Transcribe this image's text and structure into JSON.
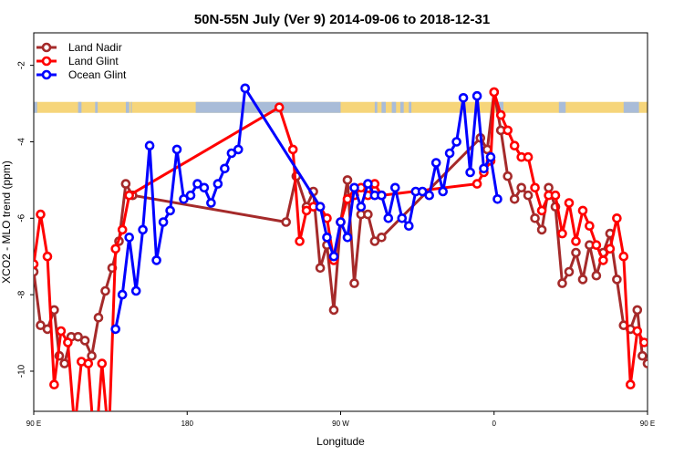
{
  "chart_data": {
    "type": "line",
    "title": "50N-55N July (Ver 9)   2014-09-06 to 2018-12-31",
    "xlabel": "Longitude",
    "ylabel": "XCO2 - MLO trend (ppm)",
    "xlim": [
      90,
      450
    ],
    "ylim": [
      -11.05,
      -1.15
    ],
    "xticks": [
      {
        "value": 90,
        "label": "90 E"
      },
      {
        "value": 180,
        "label": "180"
      },
      {
        "value": 270,
        "label": "90 W"
      },
      {
        "value": 360,
        "label": "0"
      },
      {
        "value": 450,
        "label": "90 E"
      },
      {
        "value": 540,
        "label": "180"
      }
    ],
    "yticks": [
      -2,
      -4,
      -6,
      -8,
      -10
    ],
    "legend_position": "top-left",
    "land_sea_band": {
      "y_center": -3.1,
      "land_color": "#f6d57a",
      "sea_color": "#a9bcd8"
    },
    "series": [
      {
        "name": "Land Nadir",
        "color": "#a52a2a",
        "points": [
          [
            90,
            -7.4
          ],
          [
            94,
            -8.8
          ],
          [
            98,
            -8.9
          ],
          [
            102,
            -8.4
          ],
          [
            105,
            -9.6
          ],
          [
            108,
            -9.8
          ],
          [
            112,
            -9.1
          ],
          [
            116,
            -9.1
          ],
          [
            120,
            -9.2
          ],
          [
            124,
            -9.6
          ],
          [
            128,
            -8.6
          ],
          [
            132,
            -7.9
          ],
          [
            136,
            -7.3
          ],
          [
            140,
            -6.6
          ],
          [
            144,
            -5.1
          ],
          [
            148,
            -5.4
          ],
          [
            238,
            -6.1
          ],
          [
            244,
            -4.9
          ],
          [
            250,
            -5.7
          ],
          [
            254,
            -5.3
          ],
          [
            258,
            -7.3
          ],
          [
            262,
            -6.7
          ],
          [
            266,
            -8.4
          ],
          [
            270,
            -6.1
          ],
          [
            274,
            -5.0
          ],
          [
            278,
            -7.7
          ],
          [
            282,
            -5.9
          ],
          [
            286,
            -5.9
          ],
          [
            290,
            -6.6
          ],
          [
            294,
            -6.5
          ],
          [
            352,
            -3.9
          ],
          [
            356,
            -4.2
          ],
          [
            360,
            -2.7
          ],
          [
            364,
            -3.7
          ],
          [
            368,
            -4.9
          ],
          [
            372,
            -5.5
          ],
          [
            376,
            -5.2
          ],
          [
            380,
            -5.4
          ],
          [
            384,
            -6.0
          ],
          [
            388,
            -6.3
          ],
          [
            392,
            -5.2
          ],
          [
            396,
            -5.7
          ],
          [
            400,
            -7.7
          ],
          [
            404,
            -7.4
          ],
          [
            408,
            -6.9
          ],
          [
            412,
            -7.6
          ],
          [
            416,
            -6.7
          ],
          [
            420,
            -7.5
          ],
          [
            424,
            -6.9
          ],
          [
            428,
            -6.4
          ],
          [
            432,
            -7.6
          ],
          [
            436,
            -8.8
          ],
          [
            440,
            -8.9
          ],
          [
            444,
            -8.4
          ],
          [
            447,
            -9.6
          ],
          [
            450,
            -9.8
          ]
        ]
      },
      {
        "name": "Land Glint",
        "color": "#ff0000",
        "points": [
          [
            90,
            -7.2
          ],
          [
            94,
            -5.9
          ],
          [
            98,
            -7.0
          ],
          [
            102,
            -10.35
          ],
          [
            106,
            -8.95
          ],
          [
            110,
            -9.25
          ],
          [
            114,
            -11.5
          ],
          [
            118,
            -9.75
          ],
          [
            122,
            -9.8
          ],
          [
            126,
            -12.2
          ],
          [
            130,
            -9.8
          ],
          [
            134,
            -11.8
          ],
          [
            138,
            -6.8
          ],
          [
            142,
            -6.3
          ],
          [
            146,
            -5.4
          ],
          [
            234,
            -3.1
          ],
          [
            242,
            -4.2
          ],
          [
            246,
            -6.6
          ],
          [
            250,
            -5.8
          ],
          [
            254,
            -5.7
          ],
          [
            258,
            -5.7
          ],
          [
            262,
            -6.0
          ],
          [
            266,
            -7.1
          ],
          [
            270,
            -6.1
          ],
          [
            274,
            -5.5
          ],
          [
            278,
            -5.4
          ],
          [
            282,
            -5.2
          ],
          [
            286,
            -5.4
          ],
          [
            290,
            -5.1
          ],
          [
            294,
            -5.4
          ],
          [
            350,
            -5.1
          ],
          [
            354,
            -4.8
          ],
          [
            358,
            -4.5
          ],
          [
            360,
            -2.7
          ],
          [
            364,
            -3.3
          ],
          [
            368,
            -3.7
          ],
          [
            372,
            -4.1
          ],
          [
            376,
            -4.4
          ],
          [
            380,
            -4.4
          ],
          [
            384,
            -5.2
          ],
          [
            388,
            -5.8
          ],
          [
            392,
            -5.4
          ],
          [
            396,
            -5.4
          ],
          [
            400,
            -6.4
          ],
          [
            404,
            -5.6
          ],
          [
            408,
            -6.6
          ],
          [
            412,
            -5.8
          ],
          [
            416,
            -6.2
          ],
          [
            420,
            -6.7
          ],
          [
            424,
            -7.1
          ],
          [
            428,
            -6.8
          ],
          [
            432,
            -6.0
          ],
          [
            436,
            -7.0
          ],
          [
            440,
            -10.35
          ],
          [
            444,
            -8.95
          ],
          [
            448,
            -9.25
          ]
        ]
      },
      {
        "name": "Ocean Glint",
        "color": "#0000ff",
        "points": [
          [
            138,
            -8.9
          ],
          [
            142,
            -8.0
          ],
          [
            146,
            -6.5
          ],
          [
            150,
            -7.9
          ],
          [
            154,
            -6.3
          ],
          [
            158,
            -4.1
          ],
          [
            162,
            -7.1
          ],
          [
            166,
            -6.1
          ],
          [
            170,
            -5.8
          ],
          [
            174,
            -4.2
          ],
          [
            178,
            -5.5
          ],
          [
            182,
            -5.4
          ],
          [
            186,
            -5.1
          ],
          [
            190,
            -5.2
          ],
          [
            194,
            -5.6
          ],
          [
            198,
            -5.1
          ],
          [
            202,
            -4.7
          ],
          [
            206,
            -4.3
          ],
          [
            210,
            -4.2
          ],
          [
            214,
            -2.6
          ],
          [
            258,
            -5.7
          ],
          [
            262,
            -6.5
          ],
          [
            266,
            -7.0
          ],
          [
            270,
            -6.1
          ],
          [
            274,
            -6.5
          ],
          [
            278,
            -5.2
          ],
          [
            282,
            -5.7
          ],
          [
            286,
            -5.1
          ],
          [
            290,
            -5.4
          ],
          [
            294,
            -5.4
          ],
          [
            298,
            -6.0
          ],
          [
            302,
            -5.2
          ],
          [
            306,
            -6.0
          ],
          [
            310,
            -6.2
          ],
          [
            314,
            -5.3
          ],
          [
            318,
            -5.3
          ],
          [
            322,
            -5.4
          ],
          [
            326,
            -4.55
          ],
          [
            330,
            -5.3
          ],
          [
            334,
            -4.3
          ],
          [
            338,
            -4.0
          ],
          [
            342,
            -2.85
          ],
          [
            346,
            -4.8
          ],
          [
            350,
            -2.8
          ],
          [
            354,
            -4.7
          ],
          [
            358,
            -4.4
          ],
          [
            362,
            -5.5
          ]
        ]
      }
    ]
  }
}
